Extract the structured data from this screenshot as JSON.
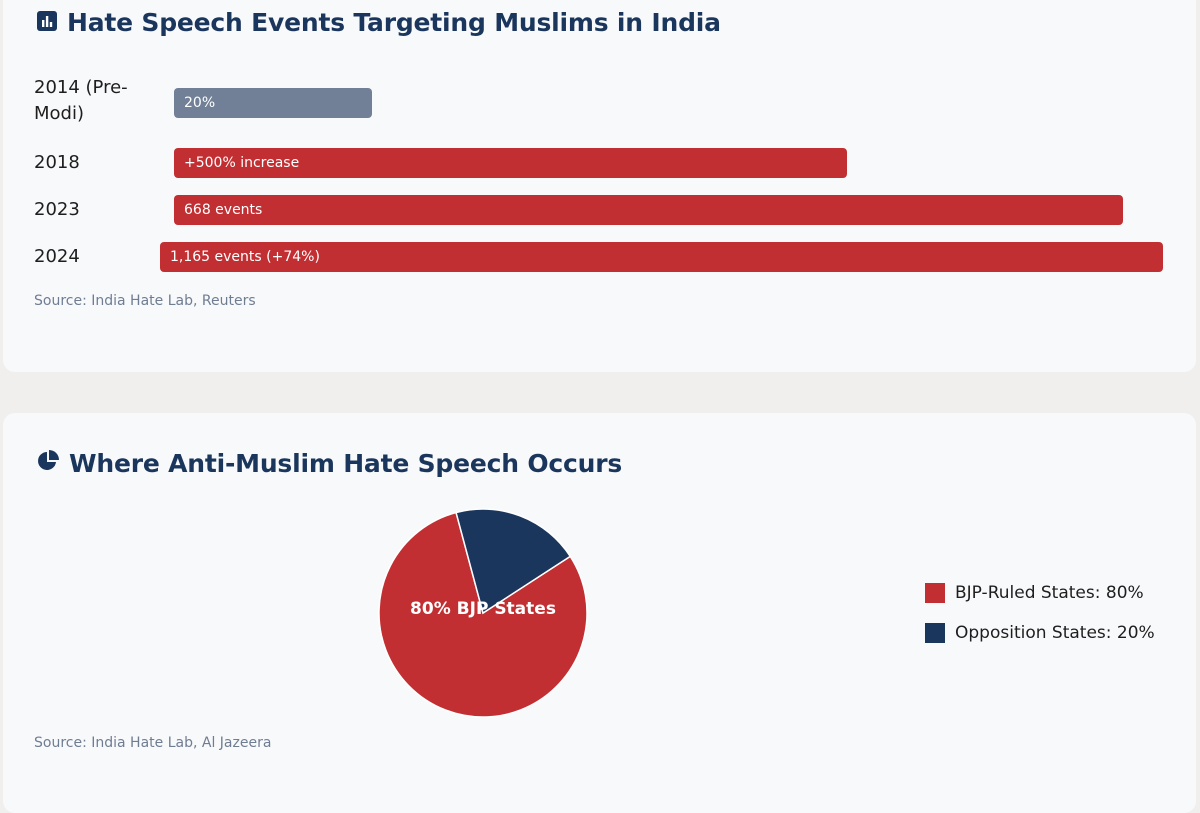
{
  "colors": {
    "red": "#c22f33",
    "navy": "#1b365d",
    "gray_bar": "#718096"
  },
  "bar_card": {
    "title": "Hate Speech Events Targeting Muslims in India",
    "icon": "bar-chart-icon",
    "source": "Source: India Hate Lab, Reuters"
  },
  "pie_card": {
    "title": "Where Anti-Muslim Hate Speech Occurs",
    "icon": "pie-chart-icon",
    "center_label": "80% BJP States",
    "source": "Source: India Hate Lab, Al Jazeera"
  },
  "chart_data": [
    {
      "type": "bar",
      "orientation": "horizontal",
      "title": "Hate Speech Events Targeting Muslims in India",
      "categories": [
        "2014 (Pre-Modi)",
        "2018",
        "2023",
        "2024"
      ],
      "values": [
        20,
        68,
        96,
        100
      ],
      "value_unit": "percent of bar-track width",
      "bar_labels": [
        "20%",
        "+500% increase",
        "668 events",
        "1,165 events (+74%)"
      ],
      "bar_colors": [
        "#718096",
        "#c22f33",
        "#c22f33",
        "#c22f33"
      ],
      "source": "Source: India Hate Lab, Reuters"
    },
    {
      "type": "pie",
      "title": "Where Anti-Muslim Hate Speech Occurs",
      "labels": [
        "BJP-Ruled States",
        "Opposition States"
      ],
      "values": [
        80,
        20
      ],
      "colors": [
        "#c22f33",
        "#1b365d"
      ],
      "legend": [
        "BJP-Ruled States: 80%",
        "Opposition States: 20%"
      ],
      "legend_position": "right",
      "center_label": "80% BJP States",
      "source": "Source: India Hate Lab, Al Jazeera"
    }
  ]
}
